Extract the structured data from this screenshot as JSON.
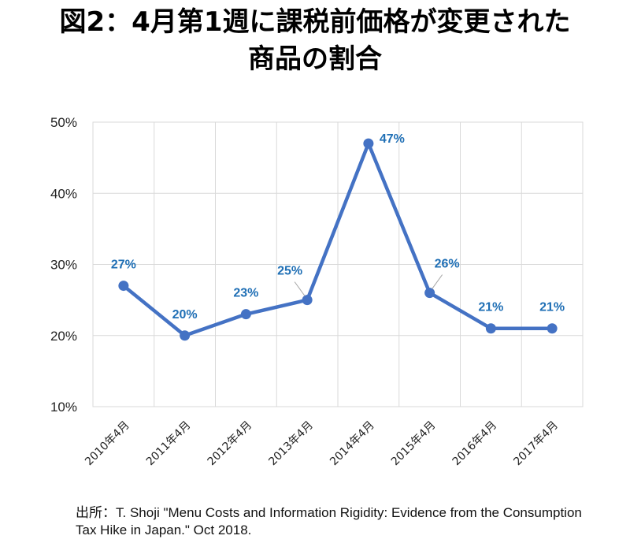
{
  "title_lines": [
    "図2：4月第1週に課税前価格が変更された",
    "商品の割合"
  ],
  "source_note_lines": [
    "出所：T. Shoji \"Menu Costs and Information Rigidity: Evidence from the Consumption",
    "Tax Hike in Japan.\" Oct 2018."
  ],
  "colors": {
    "series": "#4472C4",
    "label": "#1F6FB5",
    "grid": "#D9D9D9"
  },
  "chart_data": {
    "type": "line",
    "title": "図2：4月第1週に課税前価格が変更された商品の割合",
    "xlabel": "",
    "ylabel": "",
    "categories": [
      "2010年4月",
      "2011年4月",
      "2012年4月",
      "2013年4月",
      "2014年4月",
      "2015年4月",
      "2016年4月",
      "2017年4月"
    ],
    "series": [
      {
        "values": [
          27,
          20,
          23,
          25,
          47,
          26,
          21,
          21
        ],
        "data_labels": [
          "27%",
          "20%",
          "23%",
          "25%",
          "47%",
          "26%",
          "21%",
          "21%"
        ]
      }
    ],
    "ylim": [
      10,
      50
    ],
    "yticks": [
      10,
      20,
      30,
      40,
      50
    ],
    "ytick_labels": [
      "10%",
      "20%",
      "30%",
      "40%",
      "50%"
    ],
    "grid": true,
    "legend": "none"
  }
}
